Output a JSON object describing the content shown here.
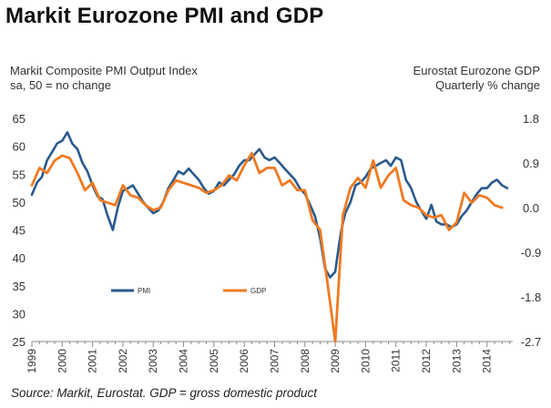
{
  "title": "Markit Eurozone PMI and GDP",
  "left_axis_label": [
    "Markit Composite PMI Output Index",
    "sa, 50 = no change"
  ],
  "right_axis_label": [
    "Eurostat Eurozone GDP",
    "Quarterly % change"
  ],
  "source": "Source: Markit, Eurostat. GDP = gross domestic product",
  "colors": {
    "pmi": "#2a5a8c",
    "gdp": "#f07a22",
    "text": "#333333",
    "baseline": "#888888"
  },
  "chart_data": {
    "type": "line",
    "title": "Markit Eurozone PMI and GDP",
    "xlabel": "",
    "x_range": [
      1999.0,
      2014.85
    ],
    "x_ticks": [
      "1999",
      "2000",
      "2001",
      "2002",
      "2003",
      "2004",
      "2005",
      "2006",
      "2007",
      "2008",
      "2009",
      "2010",
      "2011",
      "2012",
      "2013",
      "2014"
    ],
    "y_left": {
      "label": "Markit Composite PMI Output Index, sa, 50 = no change",
      "lim": [
        25,
        65
      ],
      "ticks": [
        "25",
        "30",
        "35",
        "40",
        "45",
        "50",
        "55",
        "60",
        "65"
      ]
    },
    "y_right": {
      "label": "Eurostat Eurozone GDP, Quarterly % change",
      "lim": [
        -2.7,
        1.8
      ],
      "ticks": [
        "-2.7",
        "-1.8",
        "-0.9",
        "0.0",
        "0.9",
        "1.8"
      ]
    },
    "legend": [
      {
        "name": "PMI",
        "position": "lower-left"
      },
      {
        "name": "GDP",
        "position": "lower-middle"
      }
    ],
    "series": [
      {
        "name": "PMI",
        "axis": "left",
        "x": [
          1999.0,
          1999.17,
          1999.33,
          1999.5,
          1999.67,
          1999.83,
          2000.0,
          2000.17,
          2000.33,
          2000.5,
          2000.67,
          2000.83,
          2001.0,
          2001.17,
          2001.33,
          2001.5,
          2001.67,
          2001.83,
          2002.0,
          2002.17,
          2002.33,
          2002.5,
          2002.67,
          2002.83,
          2003.0,
          2003.17,
          2003.33,
          2003.5,
          2003.67,
          2003.83,
          2004.0,
          2004.17,
          2004.33,
          2004.5,
          2004.67,
          2004.83,
          2005.0,
          2005.17,
          2005.33,
          2005.5,
          2005.67,
          2005.83,
          2006.0,
          2006.17,
          2006.33,
          2006.5,
          2006.67,
          2006.83,
          2007.0,
          2007.17,
          2007.33,
          2007.5,
          2007.67,
          2007.83,
          2008.0,
          2008.17,
          2008.33,
          2008.5,
          2008.67,
          2008.83,
          2009.0,
          2009.1,
          2009.2,
          2009.33,
          2009.5,
          2009.67,
          2009.83,
          2010.0,
          2010.17,
          2010.33,
          2010.5,
          2010.67,
          2010.83,
          2011.0,
          2011.17,
          2011.33,
          2011.5,
          2011.67,
          2011.83,
          2012.0,
          2012.17,
          2012.33,
          2012.5,
          2012.67,
          2012.83,
          2013.0,
          2013.17,
          2013.33,
          2013.5,
          2013.67,
          2013.83,
          2014.0,
          2014.17,
          2014.33,
          2014.5,
          2014.67
        ],
        "y": [
          51.3,
          53.5,
          54.5,
          57.5,
          59.0,
          60.5,
          61.0,
          62.5,
          60.5,
          59.5,
          57.0,
          55.5,
          53.0,
          51.0,
          50.5,
          47.5,
          45.0,
          49.0,
          52.0,
          52.5,
          53.0,
          51.5,
          50.0,
          49.0,
          48.0,
          48.5,
          50.0,
          52.5,
          54.0,
          55.5,
          55.0,
          56.0,
          55.0,
          54.0,
          52.5,
          51.5,
          52.0,
          53.5,
          53.0,
          54.0,
          55.0,
          56.5,
          57.5,
          57.5,
          58.5,
          59.5,
          58.0,
          57.5,
          58.0,
          57.0,
          56.0,
          55.0,
          54.0,
          52.5,
          51.5,
          49.5,
          47.5,
          43.5,
          38.0,
          36.5,
          37.5,
          41.5,
          45.0,
          48.0,
          50.0,
          53.0,
          53.5,
          54.5,
          56.0,
          56.5,
          57.0,
          57.5,
          56.5,
          58.0,
          57.5,
          54.0,
          52.5,
          50.0,
          48.5,
          47.0,
          49.5,
          46.5,
          46.0,
          46.0,
          45.5,
          46.0,
          47.5,
          48.5,
          50.0,
          51.5,
          52.5,
          52.5,
          53.5,
          54.0,
          53.0,
          52.5
        ]
      },
      {
        "name": "GDP",
        "axis": "right",
        "x": [
          1999.0,
          1999.25,
          1999.5,
          1999.75,
          2000.0,
          2000.25,
          2000.5,
          2000.75,
          2001.0,
          2001.25,
          2001.5,
          2001.75,
          2002.0,
          2002.25,
          2002.5,
          2002.75,
          2003.0,
          2003.25,
          2003.5,
          2003.75,
          2004.0,
          2004.25,
          2004.5,
          2004.75,
          2005.0,
          2005.25,
          2005.5,
          2005.75,
          2006.0,
          2006.25,
          2006.5,
          2006.75,
          2007.0,
          2007.25,
          2007.5,
          2007.75,
          2008.0,
          2008.25,
          2008.5,
          2008.75,
          2009.0,
          2009.25,
          2009.5,
          2009.75,
          2010.0,
          2010.25,
          2010.5,
          2010.75,
          2011.0,
          2011.25,
          2011.5,
          2011.75,
          2012.0,
          2012.25,
          2012.5,
          2012.75,
          2013.0,
          2013.25,
          2013.5,
          2013.75,
          2014.0,
          2014.25,
          2014.5
        ],
        "y": [
          0.45,
          0.8,
          0.7,
          0.95,
          1.05,
          1.0,
          0.7,
          0.35,
          0.5,
          0.15,
          0.1,
          0.05,
          0.45,
          0.25,
          0.2,
          0.05,
          -0.05,
          0.0,
          0.35,
          0.55,
          0.5,
          0.45,
          0.4,
          0.3,
          0.35,
          0.45,
          0.65,
          0.55,
          0.85,
          1.1,
          0.7,
          0.8,
          0.8,
          0.45,
          0.55,
          0.35,
          0.35,
          -0.25,
          -0.45,
          -1.55,
          -2.7,
          -0.15,
          0.4,
          0.6,
          0.4,
          0.95,
          0.4,
          0.65,
          0.8,
          0.15,
          0.05,
          0.0,
          -0.15,
          -0.2,
          -0.15,
          -0.45,
          -0.3,
          0.3,
          0.1,
          0.25,
          0.2,
          0.05,
          0.0
        ]
      }
    ]
  }
}
